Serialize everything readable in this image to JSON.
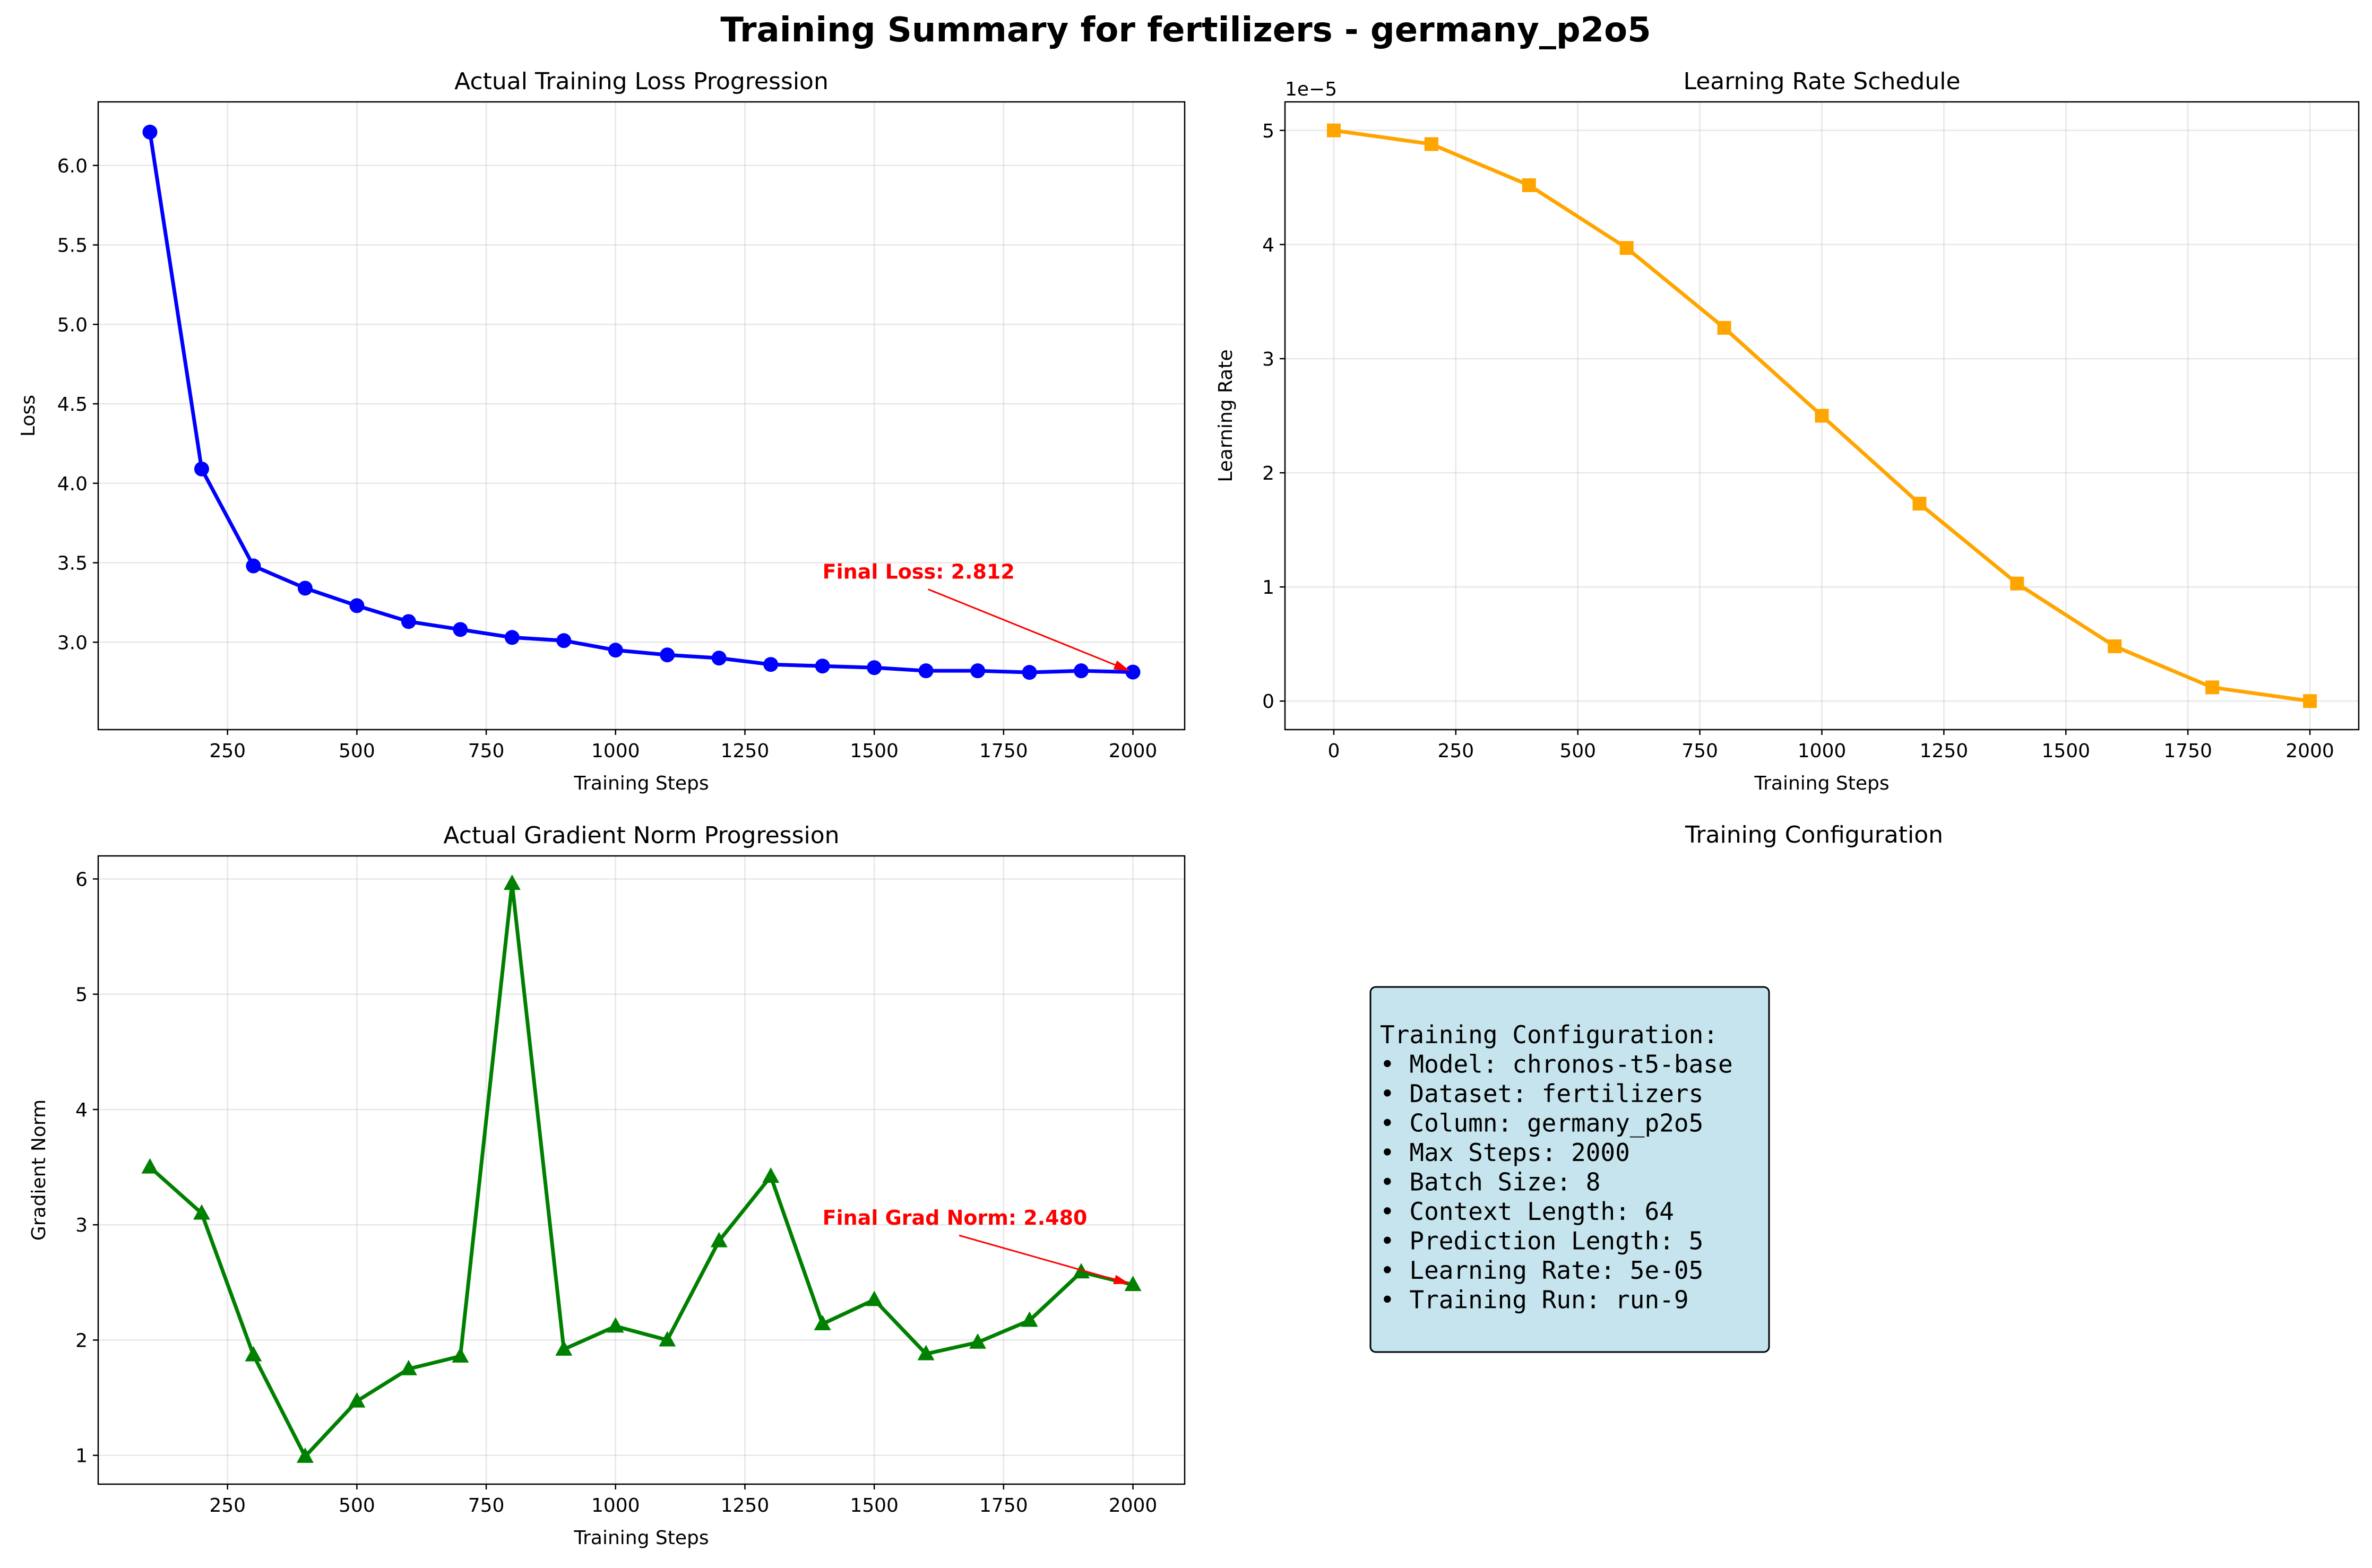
{
  "figure": {
    "title": "Training Summary for fertilizers - germany_p2o5"
  },
  "chart_data": [
    {
      "type": "line",
      "title": "Actual Training Loss Progression",
      "xlabel": "Training Steps",
      "ylabel": "Loss",
      "xlim": [
        0,
        2100
      ],
      "ylim": [
        2.45,
        6.4
      ],
      "xticks": [
        250,
        500,
        750,
        1000,
        1250,
        1500,
        1750,
        2000
      ],
      "yticks": [
        3.0,
        3.5,
        4.0,
        4.5,
        5.0,
        5.5,
        6.0
      ],
      "ytick_decimals": 1,
      "grid": true,
      "color": "#0000ff",
      "marker": "circle",
      "x": [
        100,
        200,
        300,
        400,
        500,
        600,
        700,
        800,
        900,
        1000,
        1100,
        1200,
        1300,
        1400,
        1500,
        1600,
        1700,
        1800,
        1900,
        2000
      ],
      "y": [
        6.21,
        4.09,
        3.48,
        3.34,
        3.23,
        3.13,
        3.08,
        3.03,
        3.01,
        2.95,
        2.92,
        2.9,
        2.86,
        2.85,
        2.84,
        2.82,
        2.82,
        2.81,
        2.82,
        2.812
      ],
      "annotation": {
        "text": "Final Loss: 2.812",
        "x": 2000,
        "y": 2.812,
        "text_x": 1400,
        "text_y": 3.4,
        "color": "#ff0000"
      }
    },
    {
      "type": "line",
      "title": "Learning Rate Schedule",
      "xlabel": "Training Steps",
      "ylabel": "Learning Rate",
      "scale_label": "1e−5",
      "scale": 1e-05,
      "xlim": [
        -100,
        2100
      ],
      "ylim": [
        -2.5e-06,
        5.25e-05
      ],
      "xticks": [
        0,
        250,
        500,
        750,
        1000,
        1250,
        1500,
        1750,
        2000
      ],
      "yticks": [
        0,
        1,
        2,
        3,
        4,
        5
      ],
      "ytick_decimals": 0,
      "grid": true,
      "color": "#ffa500",
      "marker": "square",
      "x": [
        0,
        200,
        400,
        600,
        800,
        1000,
        1200,
        1400,
        1600,
        1800,
        2000
      ],
      "y": [
        5e-05,
        4.88e-05,
        4.52e-05,
        3.97e-05,
        3.27e-05,
        2.5e-05,
        1.73e-05,
        1.03e-05,
        4.8e-06,
        1.2e-06,
        0
      ]
    },
    {
      "type": "line",
      "title": "Actual Gradient Norm Progression",
      "xlabel": "Training Steps",
      "ylabel": "Gradient Norm",
      "xlim": [
        0,
        2100
      ],
      "ylim": [
        0.75,
        6.2
      ],
      "xticks": [
        250,
        500,
        750,
        1000,
        1250,
        1500,
        1750,
        2000
      ],
      "yticks": [
        1,
        2,
        3,
        4,
        5,
        6
      ],
      "ytick_decimals": 0,
      "grid": true,
      "color": "#008000",
      "marker": "triangle",
      "x": [
        100,
        200,
        300,
        400,
        500,
        600,
        700,
        800,
        900,
        1000,
        1100,
        1200,
        1300,
        1400,
        1500,
        1600,
        1700,
        1800,
        1900,
        2000
      ],
      "y": [
        3.5,
        3.1,
        1.87,
        0.99,
        1.47,
        1.75,
        1.86,
        5.96,
        1.92,
        2.12,
        2.0,
        2.86,
        3.42,
        2.14,
        2.35,
        1.88,
        1.98,
        2.17,
        2.59,
        2.48
      ],
      "annotation": {
        "text": "Final Grad Norm: 2.480",
        "x": 2000,
        "y": 2.48,
        "text_x": 1400,
        "text_y": 3.0,
        "color": "#ff0000"
      }
    }
  ],
  "config_panel": {
    "title": "Training Configuration",
    "box_color": "#add8e6",
    "lines": [
      "Training Configuration:",
      "• Model: chronos-t5-base",
      "• Dataset: fertilizers",
      "• Column: germany_p2o5",
      "• Max Steps: 2000",
      "• Batch Size: 8",
      "• Context Length: 64",
      "• Prediction Length: 5",
      "• Learning Rate: 5e-05",
      "• Training Run: run-9"
    ]
  }
}
